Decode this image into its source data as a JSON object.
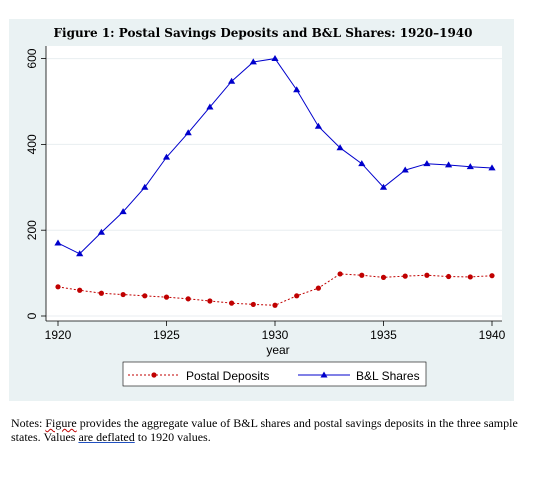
{
  "chart_data": {
    "type": "line",
    "title": "Figure 1: Postal Savings Deposits and B&L Shares: 1920–1940",
    "xlabel": "year",
    "ylabel": "",
    "xlim": [
      1920,
      1940
    ],
    "ylim": [
      0,
      620
    ],
    "x_ticks": [
      1920,
      1925,
      1930,
      1935,
      1940
    ],
    "y_ticks": [
      0,
      200,
      400,
      600
    ],
    "grid": "horizontal",
    "legend": "bottom",
    "x": [
      1920,
      1921,
      1922,
      1923,
      1924,
      1925,
      1926,
      1927,
      1928,
      1929,
      1930,
      1931,
      1932,
      1933,
      1934,
      1935,
      1936,
      1937,
      1938,
      1939,
      1940
    ],
    "series": [
      {
        "name": "Postal Deposits",
        "color": "#c00000",
        "style": "dashed",
        "marker": "circle",
        "values": [
          68,
          60,
          53,
          50,
          47,
          44,
          40,
          35,
          30,
          27,
          25,
          47,
          65,
          98,
          95,
          90,
          93,
          95,
          92,
          91,
          94
        ]
      },
      {
        "name": "B&L Shares",
        "color": "#0000cc",
        "style": "solid",
        "marker": "triangle",
        "values": [
          170,
          145,
          195,
          243,
          300,
          370,
          427,
          487,
          547,
          592,
          600,
          527,
          442,
          392,
          355,
          300,
          340,
          355,
          352,
          348,
          345
        ]
      }
    ]
  },
  "notes": {
    "prefix": "Notes: ",
    "word_figure": "Figure",
    "mid": " provides the aggregate value of B&L shares and postal savings deposits in the three sample states. Values ",
    "word_deflated": "are deflated",
    "suffix": " to 1920 values."
  }
}
